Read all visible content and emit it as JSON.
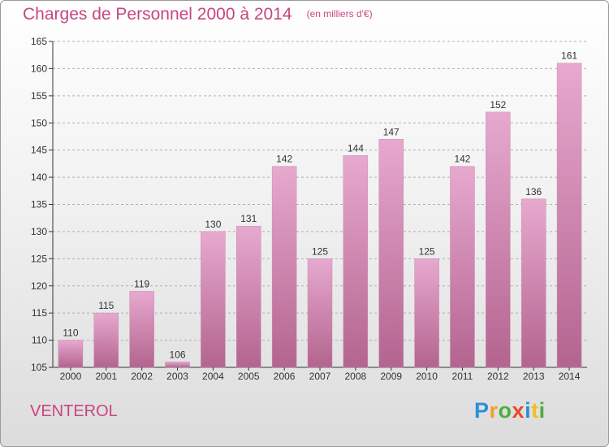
{
  "header": {
    "title": "Charges de Personnel 2000 à 2014",
    "units": "(en milliers d'€)"
  },
  "footer": {
    "commune": "VENTEROL",
    "brand": "Proxiti",
    "brand_letters": [
      {
        "ch": "P",
        "color": "#2a8fd6"
      },
      {
        "ch": "r",
        "color": "#f0a02a"
      },
      {
        "ch": "o",
        "color": "#4fae3d"
      },
      {
        "ch": "x",
        "color": "#e8482c"
      },
      {
        "ch": "i",
        "color": "#2a8fd6"
      },
      {
        "ch": "t",
        "color": "#f0c020"
      },
      {
        "ch": "i",
        "color": "#4fae3d"
      }
    ]
  },
  "colors": {
    "title": "#c8457f",
    "bar_top": "#e7a9cf",
    "bar_bottom": "#b3648f",
    "grid": "#b0b0b0",
    "axis": "#333333"
  },
  "chart_data": {
    "type": "bar",
    "title": "Charges de Personnel 2000 à 2014",
    "subtitle": "(en milliers d'€)",
    "xlabel": "",
    "ylabel": "",
    "categories": [
      "2000",
      "2001",
      "2002",
      "2003",
      "2004",
      "2005",
      "2006",
      "2007",
      "2008",
      "2009",
      "2010",
      "2011",
      "2012",
      "2013",
      "2014"
    ],
    "values": [
      110,
      115,
      119,
      106,
      130,
      131,
      142,
      125,
      144,
      147,
      125,
      142,
      152,
      136,
      161
    ],
    "ylim": [
      105,
      165
    ],
    "yticks": [
      105,
      110,
      115,
      120,
      125,
      130,
      135,
      140,
      145,
      150,
      155,
      160,
      165
    ],
    "grid": "horizontal dashed",
    "data_labels": true
  }
}
